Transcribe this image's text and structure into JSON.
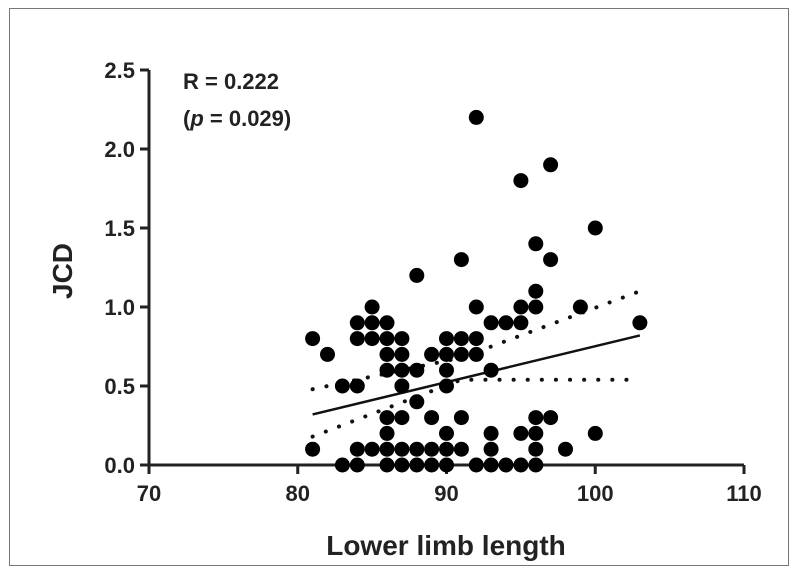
{
  "chart_data": {
    "type": "scatter",
    "title": "",
    "xlabel": "Lower limb length",
    "ylabel": "JCD",
    "xlim": [
      70,
      110
    ],
    "ylim": [
      0,
      2.5
    ],
    "xticks": [
      "70",
      "80",
      "90",
      "100",
      "110"
    ],
    "yticks": [
      "0.0",
      "0.5",
      "1.0",
      "1.5",
      "2.0",
      "2.5"
    ],
    "grid": false,
    "legend": "none",
    "annotation": {
      "r_text": "R = 0.222",
      "p_open": "(",
      "p_symbol": "p",
      "p_rest": " = 0.029)"
    },
    "points": [
      [
        81,
        0.8
      ],
      [
        81,
        0.1
      ],
      [
        82,
        0.7
      ],
      [
        83,
        0.5
      ],
      [
        83,
        0
      ],
      [
        84,
        0.9
      ],
      [
        84,
        0.8
      ],
      [
        84,
        0.5
      ],
      [
        84,
        0.1
      ],
      [
        84,
        0
      ],
      [
        85,
        1.0
      ],
      [
        85,
        0.9
      ],
      [
        85,
        0.8
      ],
      [
        85,
        0.1
      ],
      [
        86,
        0.9
      ],
      [
        86,
        0.8
      ],
      [
        86,
        0.7
      ],
      [
        86,
        0.6
      ],
      [
        86,
        0.3
      ],
      [
        86,
        0.2
      ],
      [
        86,
        0.1
      ],
      [
        86,
        0
      ],
      [
        87,
        0.8
      ],
      [
        87,
        0.7
      ],
      [
        87,
        0.6
      ],
      [
        87,
        0.5
      ],
      [
        87,
        0.3
      ],
      [
        87,
        0.1
      ],
      [
        87,
        0
      ],
      [
        88,
        1.2
      ],
      [
        88,
        0.6
      ],
      [
        88,
        0.4
      ],
      [
        88,
        0.1
      ],
      [
        88,
        0
      ],
      [
        89,
        0.7
      ],
      [
        89,
        0.3
      ],
      [
        89,
        0.1
      ],
      [
        89,
        0
      ],
      [
        90,
        0.8
      ],
      [
        90,
        0.7
      ],
      [
        90,
        0.6
      ],
      [
        90,
        0.5
      ],
      [
        90,
        0.2
      ],
      [
        90,
        0.1
      ],
      [
        90,
        0
      ],
      [
        91,
        1.3
      ],
      [
        91,
        0.8
      ],
      [
        91,
        0.7
      ],
      [
        91,
        0.3
      ],
      [
        91,
        0.1
      ],
      [
        92,
        2.2
      ],
      [
        92,
        1.0
      ],
      [
        92,
        0.8
      ],
      [
        92,
        0.7
      ],
      [
        92,
        0
      ],
      [
        93,
        0.9
      ],
      [
        93,
        0.6
      ],
      [
        93,
        0.2
      ],
      [
        93,
        0.1
      ],
      [
        93,
        0
      ],
      [
        94,
        0.9
      ],
      [
        94,
        0
      ],
      [
        95,
        1.8
      ],
      [
        95,
        1.0
      ],
      [
        95,
        0.9
      ],
      [
        95,
        0.2
      ],
      [
        95,
        0
      ],
      [
        96,
        1.4
      ],
      [
        96,
        1.1
      ],
      [
        96,
        1.0
      ],
      [
        96,
        0.3
      ],
      [
        96,
        0.2
      ],
      [
        96,
        0.1
      ],
      [
        96,
        0
      ],
      [
        97,
        1.9
      ],
      [
        97,
        1.3
      ],
      [
        97,
        0.3
      ],
      [
        98,
        0.1
      ],
      [
        99,
        1.0
      ],
      [
        100,
        1.5
      ],
      [
        100,
        0.2
      ],
      [
        103,
        0.9
      ]
    ],
    "regression": {
      "x": [
        81,
        103
      ],
      "y": [
        0.32,
        0.82
      ]
    },
    "ci_upper": {
      "x": [
        81,
        91,
        103
      ],
      "y": [
        0.48,
        0.68,
        1.1
      ]
    },
    "ci_lower": {
      "x": [
        81,
        91,
        103
      ],
      "y": [
        0.18,
        0.54,
        0.54
      ]
    },
    "colors": {
      "marker": "#000000",
      "axis": "#222222"
    }
  }
}
